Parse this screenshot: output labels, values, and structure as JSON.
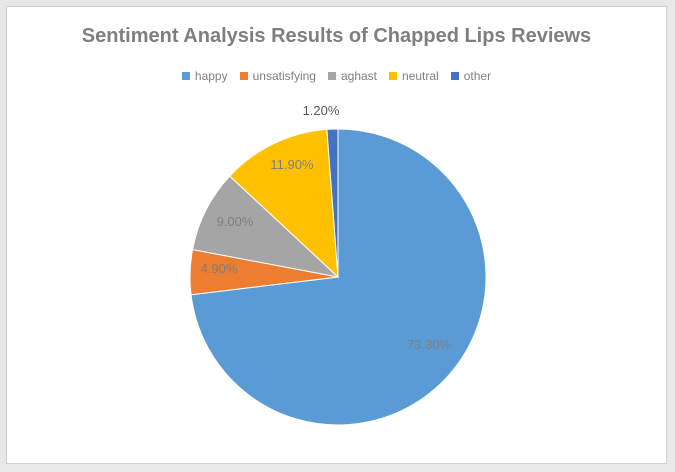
{
  "chart_data": {
    "type": "pie",
    "title": "Sentiment Analysis Results of Chapped Lips Reviews",
    "legend_position": "top",
    "slices": [
      {
        "label": "happy",
        "value": 73.3,
        "display": "73.30%",
        "color": "#5b9bd5"
      },
      {
        "label": "unsatisfying",
        "value": 4.9,
        "display": "4.90%",
        "color": "#ed7d31"
      },
      {
        "label": "aghast",
        "value": 9.0,
        "display": "9.00%",
        "color": "#a5a5a5"
      },
      {
        "label": "neutral",
        "value": 11.9,
        "display": "11.90%",
        "color": "#ffc000"
      },
      {
        "label": "other",
        "value": 1.2,
        "display": "1.20%",
        "color": "#4472c4"
      }
    ]
  }
}
